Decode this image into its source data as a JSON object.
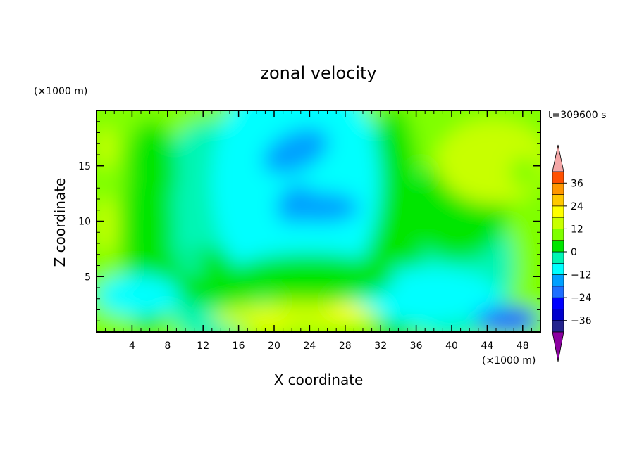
{
  "chart_data": {
    "type": "heatmap",
    "title": "zonal velocity",
    "xlabel": "X coordinate",
    "ylabel": "Z coordinate",
    "x_unit": "(×1000 m)",
    "z_unit": "(×1000 m)",
    "time_label": "t=309600 s",
    "xlim": [
      0,
      50
    ],
    "ylim": [
      0,
      20
    ],
    "x_ticks": [
      4,
      8,
      12,
      16,
      20,
      24,
      28,
      32,
      36,
      40,
      44,
      48
    ],
    "y_ticks": [
      5,
      10,
      15
    ],
    "colorbar": {
      "ticks": [
        36,
        24,
        12,
        0,
        -12,
        -24,
        -36
      ],
      "levels": [
        -42,
        -36,
        -30,
        -24,
        -18,
        -12,
        -6,
        0,
        6,
        12,
        18,
        24,
        30,
        36,
        42
      ],
      "colors": [
        "#4b0082",
        "#23238e",
        "#0000cd",
        "#0000ff",
        "#1e6fff",
        "#00a0ff",
        "#00ffff",
        "#00f5b4",
        "#00e600",
        "#7fff00",
        "#c8ff00",
        "#ffff00",
        "#ffc800",
        "#ff9600",
        "#ff5000",
        "#ff1e00"
      ],
      "under_color": "#8b00a0",
      "over_color": "#f4a7a7"
    },
    "grid": false
  }
}
